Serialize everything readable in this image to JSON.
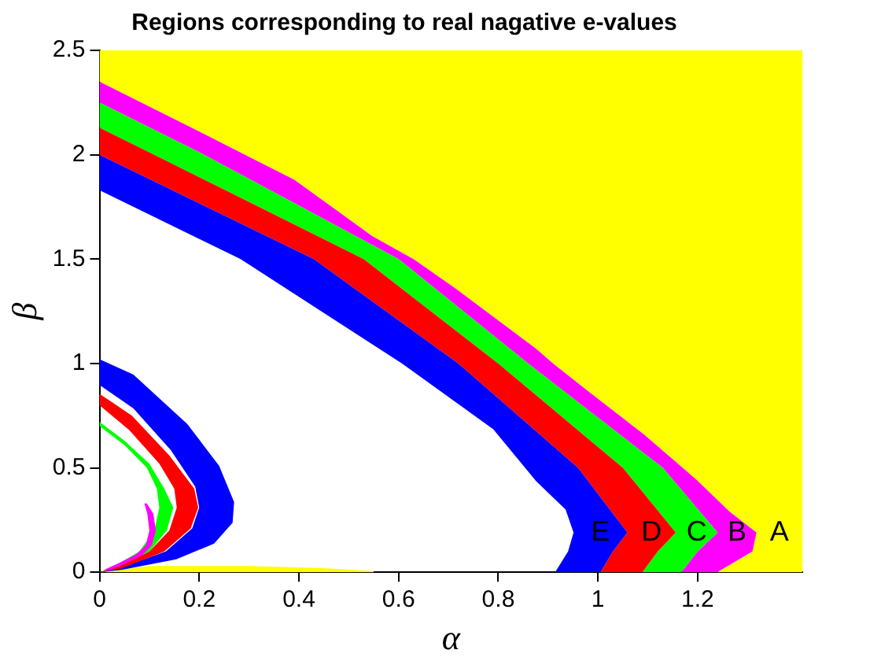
{
  "chart_data": {
    "type": "area",
    "title": "Regions corresponding to real nagative e-values",
    "xlabel": "α",
    "ylabel": "β",
    "xlim": [
      0,
      1.41
    ],
    "ylim": [
      0,
      2.5
    ],
    "xticks": [
      0,
      0.2,
      0.4,
      0.6,
      0.8,
      1,
      1.2
    ],
    "yticks": [
      0,
      0.5,
      1,
      1.5,
      2,
      2.5
    ],
    "grid": false,
    "series": [
      {
        "name": "A",
        "color": "#ffff00",
        "x": [
          0,
          0,
          0.176,
          0.292,
          0.391,
          0.547,
          0.63,
          0.714,
          0.876,
          0.91,
          0.984,
          1.092,
          1.17,
          1.199,
          1.264,
          1.318,
          1.31,
          1.239,
          0.55,
          0.55,
          0.45,
          0.3,
          0.1,
          0,
          1.41,
          1.41
        ],
        "values": [
          2.5,
          2.35,
          2.14,
          2.0,
          1.88,
          1.61,
          1.5,
          1.36,
          1.07,
          1.0,
          0.86,
          0.66,
          0.5,
          0.44,
          0.29,
          0.19,
          0.1,
          0,
          0,
          0.005,
          0.02,
          0.03,
          0.03,
          0,
          0,
          2.5
        ]
      },
      {
        "name": "B",
        "color": "#ff00ff",
        "x": [
          0,
          0.176,
          0.292,
          0.391,
          0.547,
          0.63,
          0.714,
          0.876,
          0.91,
          0.984,
          1.092,
          1.17,
          1.199,
          1.264,
          1.318,
          1.31,
          1.239,
          1.167,
          1.2,
          1.24,
          1.13,
          0.86,
          0.6,
          0.21,
          0
        ],
        "values": [
          2.35,
          2.14,
          2.0,
          1.88,
          1.61,
          1.5,
          1.36,
          1.07,
          1.0,
          0.86,
          0.66,
          0.5,
          0.44,
          0.29,
          0.19,
          0.1,
          0,
          0,
          0.1,
          0.19,
          0.5,
          1.0,
          1.5,
          2.0,
          2.25
        ]
      },
      {
        "name": "C",
        "color": "#00ff00",
        "x": [
          0,
          0.21,
          0.6,
          0.86,
          1.13,
          1.24,
          1.2,
          1.167,
          1.089,
          1.12,
          1.156,
          1.05,
          0.8,
          0.53,
          0.11,
          0
        ],
        "values": [
          2.25,
          2.0,
          1.5,
          1.0,
          0.5,
          0.19,
          0.1,
          0,
          0,
          0.1,
          0.19,
          0.5,
          1.0,
          1.5,
          2.0,
          2.13
        ]
      },
      {
        "name": "D",
        "color": "#ff0000",
        "x": [
          0,
          0.11,
          0.53,
          0.8,
          1.05,
          1.156,
          1.12,
          1.089,
          1.005,
          1.03,
          1.059,
          0.96,
          0.72,
          0.43,
          0
        ],
        "values": [
          2.13,
          2.0,
          1.5,
          1.0,
          0.5,
          0.19,
          0.1,
          0,
          0,
          0.1,
          0.19,
          0.5,
          1.0,
          1.5,
          2.0
        ]
      },
      {
        "name": "E",
        "color": "#0000ff",
        "x": [
          0,
          0.43,
          0.72,
          0.96,
          1.059,
          1.03,
          1.005,
          0.914,
          0.94,
          0.951,
          0.935,
          0.876,
          0.79,
          0.607,
          0.283,
          0
        ],
        "values": [
          2.0,
          1.5,
          1.0,
          0.5,
          0.19,
          0.1,
          0,
          0,
          0.1,
          0.19,
          0.3,
          0.436,
          0.685,
          1.0,
          1.5,
          1.83
        ]
      },
      {
        "color": "#0000ff",
        "x": [
          0,
          0.068,
          0.176,
          0.24,
          0.27,
          0.267,
          0.23,
          0.154,
          0.046,
          0,
          0.046,
          0.133,
          0.186,
          0.2,
          0.192,
          0.143,
          0.068,
          0
        ],
        "values": [
          1.02,
          0.947,
          0.71,
          0.51,
          0.336,
          0.237,
          0.137,
          0.062,
          0.012,
          0,
          0.025,
          0.1,
          0.21,
          0.31,
          0.41,
          0.585,
          0.785,
          0.897
        ]
      },
      {
        "color": "#ff0000",
        "x": [
          0,
          0.065,
          0.14,
          0.19,
          0.198,
          0.183,
          0.13,
          0.045,
          0,
          0.04,
          0.1,
          0.14,
          0.155,
          0.15,
          0.12,
          0.06,
          0
        ],
        "values": [
          0.855,
          0.75,
          0.56,
          0.4,
          0.31,
          0.21,
          0.1,
          0.02,
          0,
          0.03,
          0.1,
          0.2,
          0.31,
          0.4,
          0.52,
          0.68,
          0.8
        ]
      },
      {
        "color": "#00ff00",
        "x": [
          0,
          0.05,
          0.1,
          0.13,
          0.148,
          0.135,
          0.1,
          0.04,
          0,
          0.03,
          0.08,
          0.11,
          0.12,
          0.115,
          0.095,
          0.05,
          0
        ],
        "values": [
          0.72,
          0.63,
          0.52,
          0.4,
          0.31,
          0.2,
          0.1,
          0.03,
          0,
          0.03,
          0.1,
          0.2,
          0.31,
          0.4,
          0.5,
          0.61,
          0.7
        ]
      },
      {
        "color": "#ff00ff",
        "x": [
          0.095,
          0.108,
          0.113,
          0.105,
          0.085,
          0.05,
          0.02,
          0.008,
          0.04,
          0.073,
          0.093,
          0.1,
          0.096,
          0.09
        ],
        "values": [
          0.33,
          0.28,
          0.2,
          0.13,
          0.08,
          0.04,
          0.01,
          0.01,
          0.045,
          0.085,
          0.13,
          0.2,
          0.28,
          0.33
        ]
      }
    ]
  }
}
